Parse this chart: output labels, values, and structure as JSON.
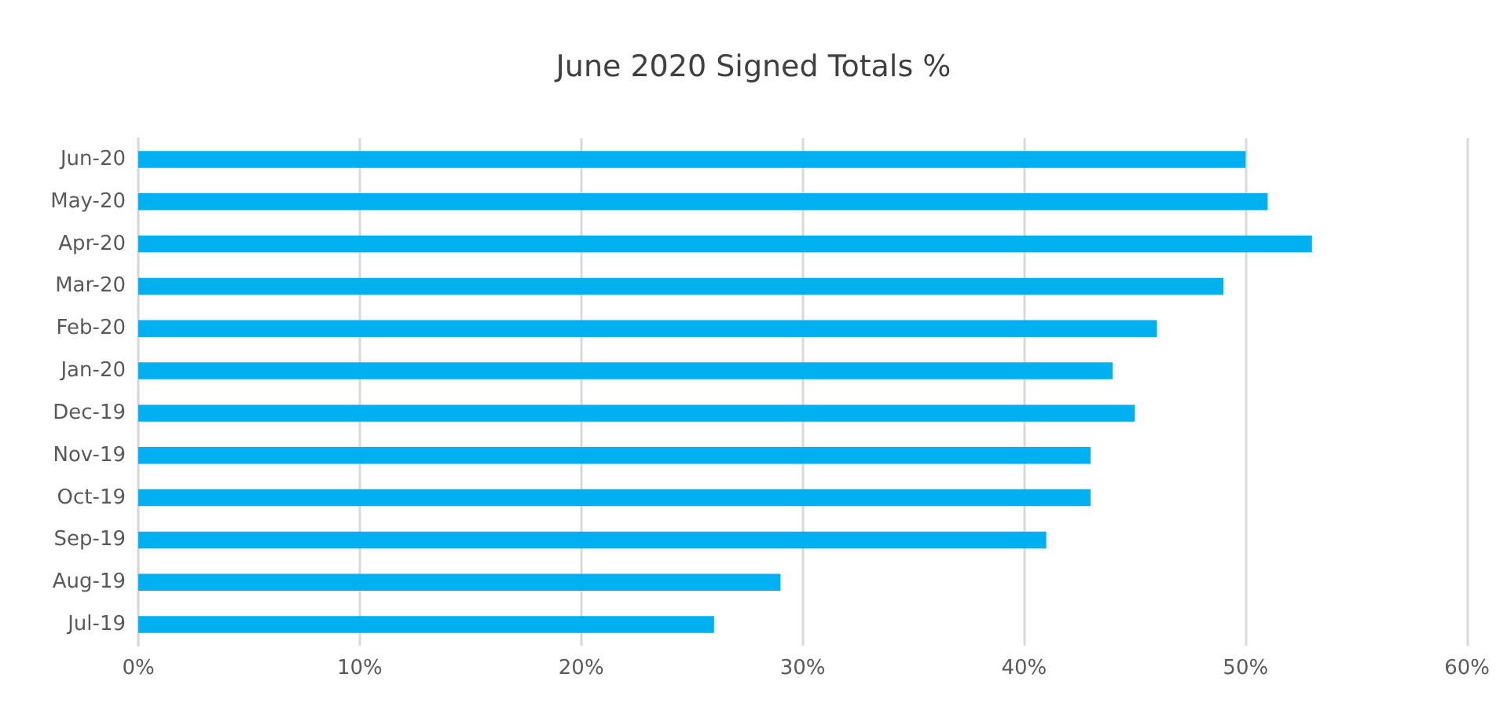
{
  "chart_data": {
    "type": "bar",
    "orientation": "horizontal",
    "title": "June 2020 Signed Totals %",
    "categories": [
      "Jun-20",
      "May-20",
      "Apr-20",
      "Mar-20",
      "Feb-20",
      "Jan-20",
      "Dec-19",
      "Nov-19",
      "Oct-19",
      "Sep-19",
      "Aug-19",
      "Jul-19"
    ],
    "values": [
      50,
      51,
      53,
      49,
      46,
      44,
      45,
      43,
      43,
      41,
      29,
      26
    ],
    "color": "#00b0f0",
    "xlim": [
      0,
      60
    ],
    "xticks": [
      {
        "value": 0,
        "label": "0%"
      },
      {
        "value": 10,
        "label": "10%"
      },
      {
        "value": 20,
        "label": "20%"
      },
      {
        "value": 30,
        "label": "30%"
      },
      {
        "value": 40,
        "label": "40%"
      },
      {
        "value": 50,
        "label": "50%"
      },
      {
        "value": 60,
        "label": "60%"
      }
    ],
    "grid": "x"
  }
}
